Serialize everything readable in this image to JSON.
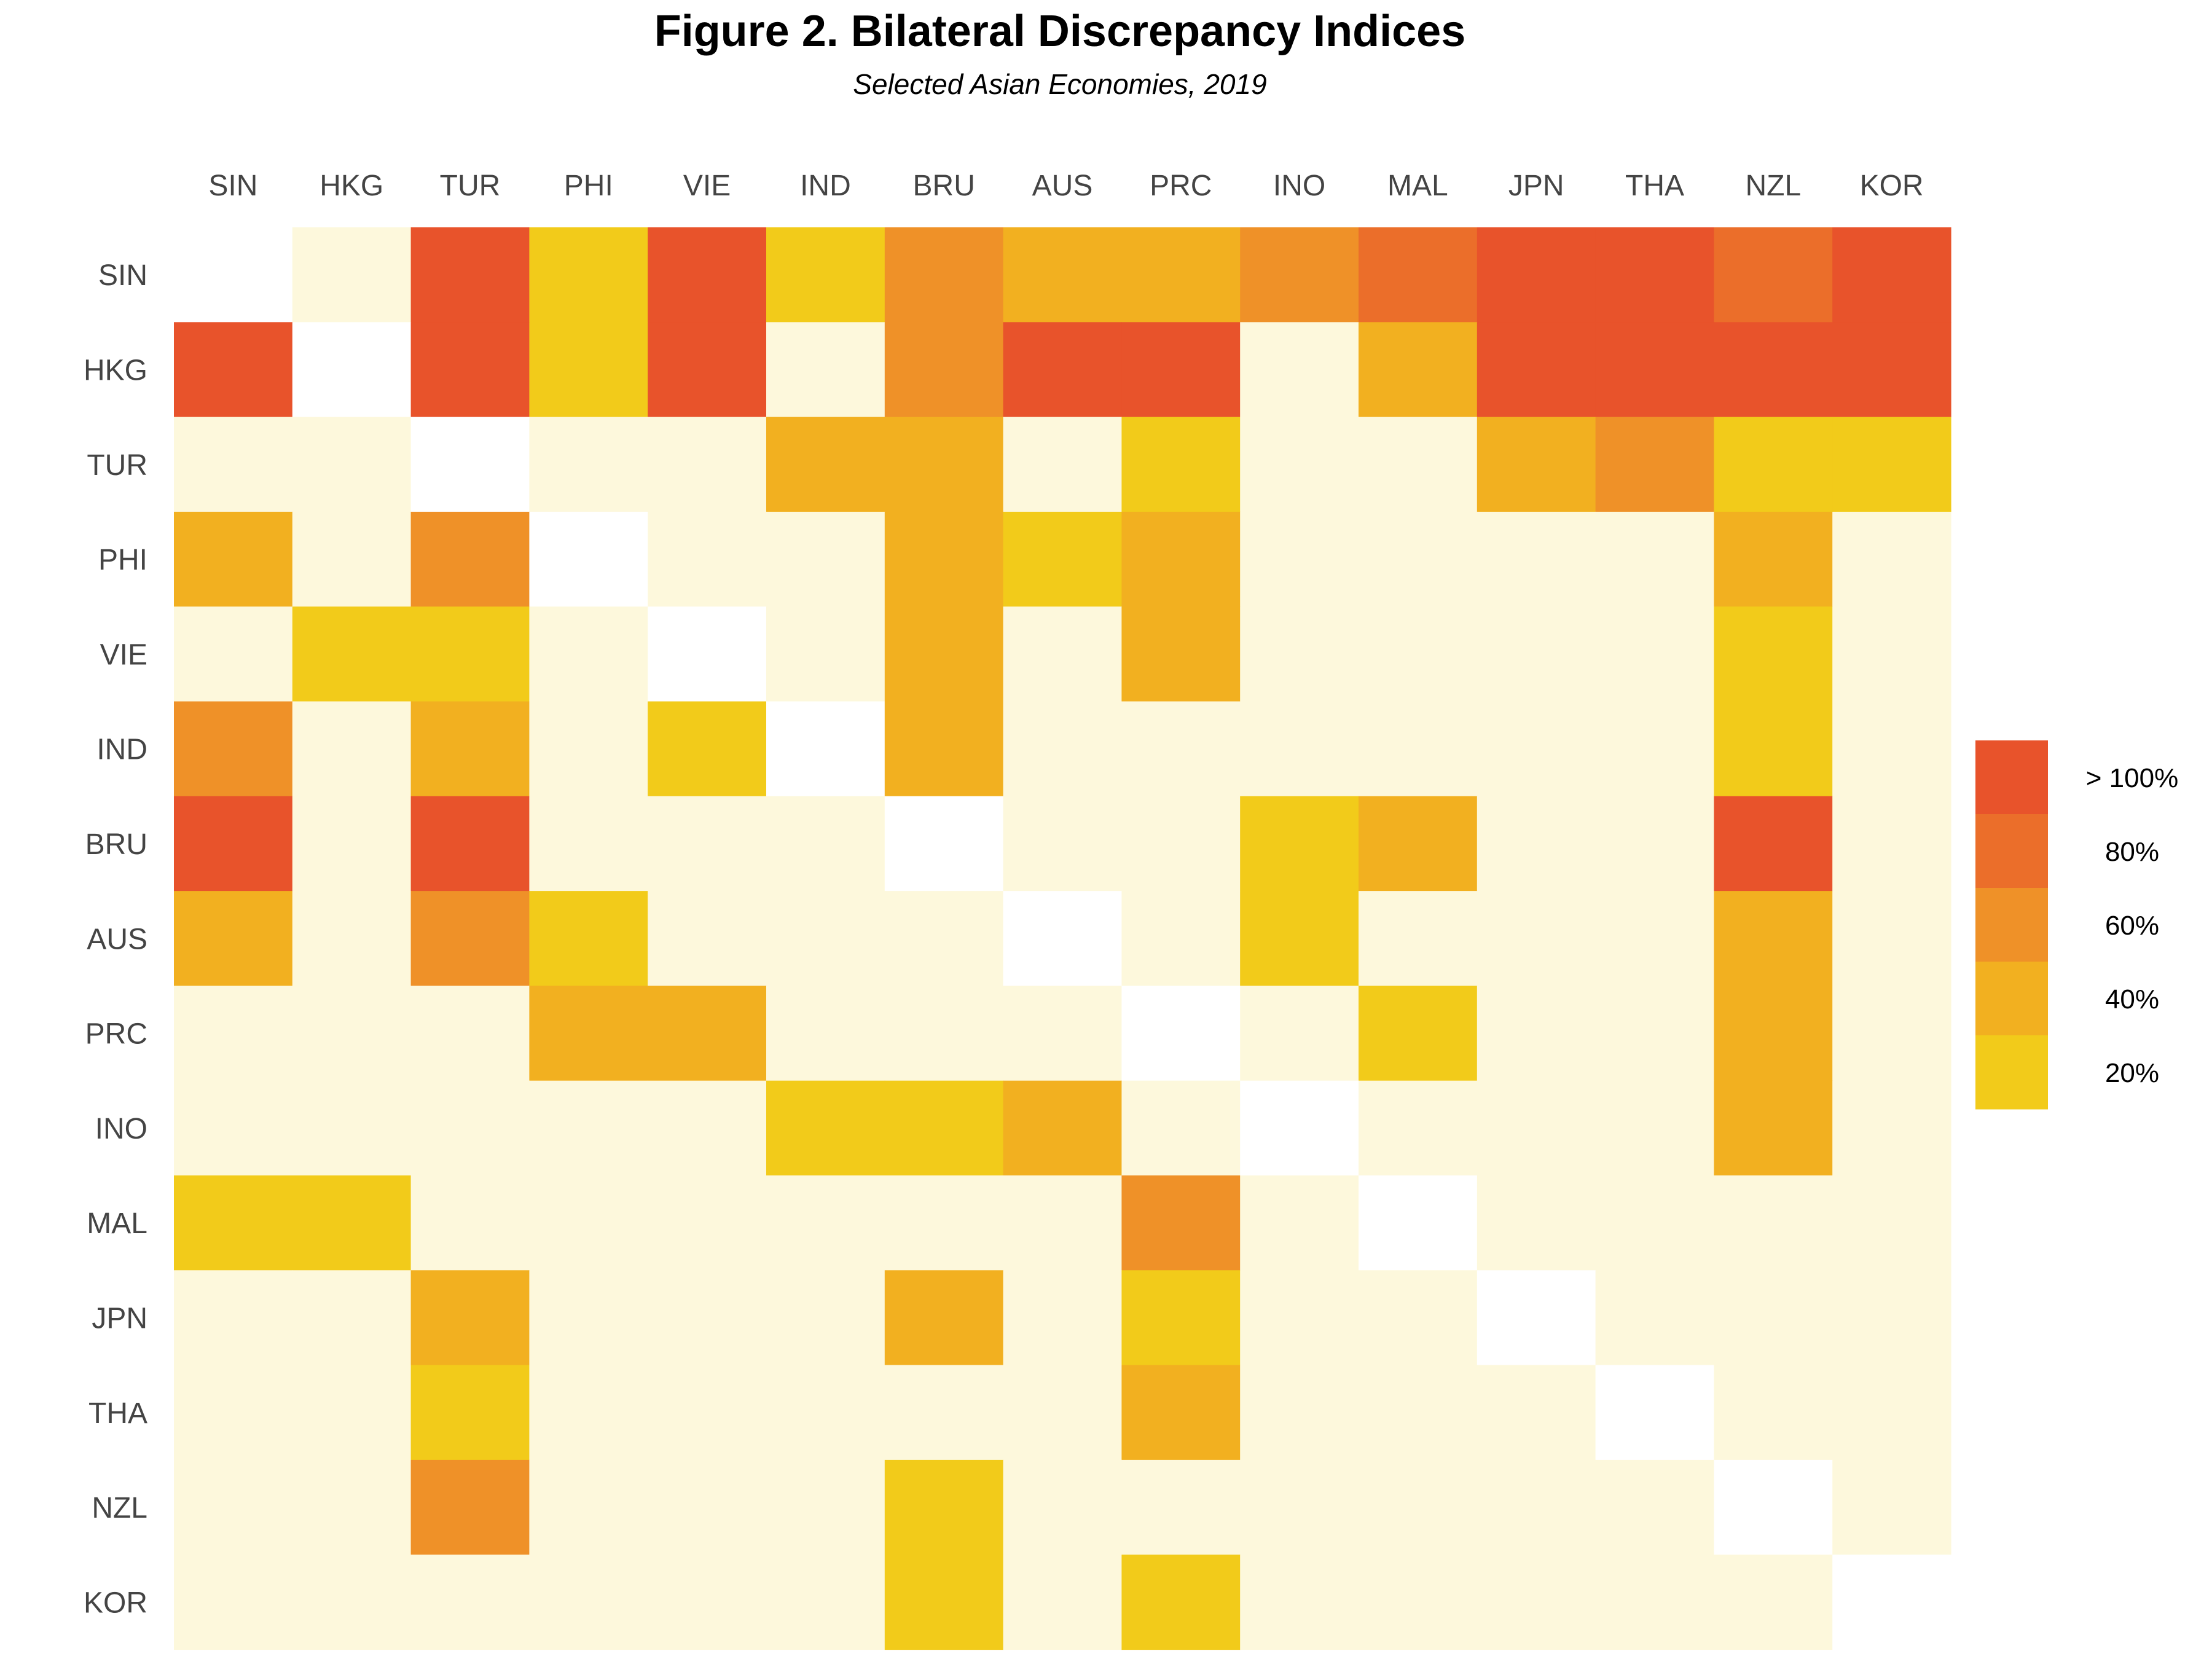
{
  "chart_data": {
    "type": "heatmap",
    "title": "Figure 2. Bilateral Discrepancy Indices",
    "subtitle": "Selected Asian Economies, 2019",
    "xlabel": "",
    "ylabel": "",
    "columns": [
      "SIN",
      "HKG",
      "TUR",
      "PHI",
      "VIE",
      "IND",
      "BRU",
      "AUS",
      "PRC",
      "INO",
      "MAL",
      "JPN",
      "THA",
      "NZL",
      "KOR"
    ],
    "rows": [
      "SIN",
      "HKG",
      "TUR",
      "PHI",
      "VIE",
      "IND",
      "BRU",
      "AUS",
      "PRC",
      "INO",
      "MAL",
      "JPN",
      "THA",
      "NZL",
      "KOR"
    ],
    "value_unit": "percent",
    "values": [
      [
        null,
        2,
        110,
        22,
        110,
        20,
        70,
        50,
        48,
        55,
        85,
        110,
        110,
        80,
        105
      ],
      [
        105,
        null,
        105,
        20,
        105,
        3,
        60,
        110,
        110,
        3,
        32,
        110,
        110,
        110,
        110
      ],
      [
        3,
        3,
        null,
        3,
        3,
        50,
        32,
        3,
        20,
        3,
        3,
        35,
        55,
        28,
        18
      ],
      [
        42,
        3,
        60,
        null,
        3,
        3,
        38,
        20,
        52,
        3,
        3,
        3,
        3,
        42,
        3
      ],
      [
        3,
        25,
        25,
        3,
        null,
        3,
        40,
        3,
        38,
        3,
        3,
        3,
        3,
        18,
        3
      ],
      [
        68,
        3,
        32,
        3,
        20,
        null,
        42,
        3,
        3,
        3,
        3,
        3,
        3,
        22,
        3
      ],
      [
        105,
        3,
        110,
        3,
        3,
        3,
        null,
        3,
        3,
        22,
        30,
        3,
        3,
        110,
        3
      ],
      [
        35,
        3,
        70,
        25,
        3,
        3,
        3,
        null,
        3,
        20,
        3,
        3,
        3,
        45,
        3
      ],
      [
        3,
        3,
        3,
        52,
        30,
        3,
        3,
        3,
        null,
        3,
        20,
        3,
        3,
        35,
        3
      ],
      [
        3,
        3,
        3,
        3,
        3,
        20,
        18,
        35,
        3,
        null,
        3,
        3,
        3,
        38,
        3
      ],
      [
        20,
        22,
        3,
        3,
        3,
        3,
        3,
        3,
        55,
        3,
        null,
        3,
        3,
        3,
        3
      ],
      [
        3,
        3,
        35,
        3,
        3,
        3,
        38,
        3,
        18,
        3,
        3,
        null,
        3,
        3,
        3
      ],
      [
        3,
        3,
        22,
        3,
        3,
        3,
        3,
        3,
        42,
        3,
        3,
        3,
        null,
        3,
        3
      ],
      [
        3,
        3,
        70,
        3,
        3,
        3,
        18,
        3,
        3,
        3,
        3,
        3,
        3,
        null,
        3
      ],
      [
        3,
        3,
        3,
        3,
        3,
        3,
        18,
        3,
        18,
        3,
        3,
        3,
        3,
        3,
        null
      ]
    ],
    "legend": {
      "position": "right",
      "labels": [
        "> 100%",
        "80%",
        "60%",
        "40%",
        "20%"
      ],
      "colors": [
        "#e8532b",
        "#eb6e2a",
        "#ef9128",
        "#f2b020",
        "#f2cb1a"
      ]
    },
    "colors": {
      "low": "#fdf8dc",
      "c20": "#f2cb1a",
      "c40": "#f2b020",
      "c60": "#ef9128",
      "c80": "#eb6e2a",
      "c100": "#e8532b",
      "diagonal": "#ffffff"
    },
    "grid": false
  }
}
